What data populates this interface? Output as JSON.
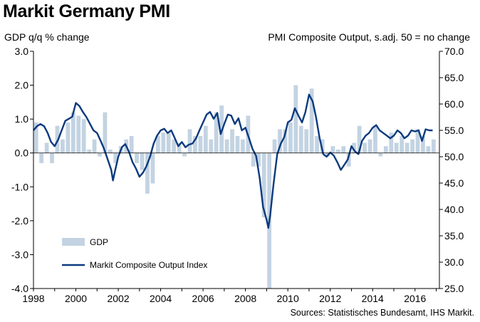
{
  "title": "Markit Germany PMI",
  "left_axis_caption": "GDP q/q % change",
  "right_axis_caption": "PMI Composite  Output, s.adj. 50 = no change",
  "source": "Sources: Statistisches Bundesamt, IHS Markit.",
  "colors": {
    "gdp_bar": "#c3d3e2",
    "pmi_line": "#0b3a7e",
    "axis": "#000000"
  },
  "chart_data": {
    "type": "bar+line",
    "title": "Markit Germany PMI",
    "x_ticks": [
      "1998",
      "2000",
      "2002",
      "2004",
      "2006",
      "2008",
      "2010",
      "2012",
      "2014",
      "2016"
    ],
    "left_axis": {
      "label": "GDP q/q % change",
      "ylim": [
        -4.0,
        3.0
      ],
      "ticks": [
        "3.0",
        "2.0",
        "1.0",
        "0.0",
        "-1.0",
        "-2.0",
        "-3.0",
        "-4.0"
      ]
    },
    "right_axis": {
      "label": "PMI Composite  Output, s.adj. 50 = no change",
      "ylim": [
        25.0,
        70.0
      ],
      "ticks": [
        "70.0",
        "65.0",
        "60.0",
        "55.0",
        "50.0",
        "45.0",
        "40.0",
        "35.0",
        "30.0",
        "25.0"
      ]
    },
    "legend": [
      "GDP",
      "Markit Composite Output Index"
    ],
    "grid": false,
    "series": [
      {
        "name": "GDP",
        "type": "bar",
        "axis": "left",
        "x": [
          1998.0,
          1998.25,
          1998.5,
          1998.75,
          1999.0,
          1999.25,
          1999.5,
          1999.75,
          2000.0,
          2000.25,
          2000.5,
          2000.75,
          2001.0,
          2001.25,
          2001.5,
          2001.75,
          2002.0,
          2002.25,
          2002.5,
          2002.75,
          2003.0,
          2003.25,
          2003.5,
          2003.75,
          2004.0,
          2004.25,
          2004.5,
          2004.75,
          2005.0,
          2005.25,
          2005.5,
          2005.75,
          2006.0,
          2006.25,
          2006.5,
          2006.75,
          2007.0,
          2007.25,
          2007.5,
          2007.75,
          2008.0,
          2008.25,
          2008.5,
          2008.75,
          2009.0,
          2009.25,
          2009.5,
          2009.75,
          2010.0,
          2010.25,
          2010.5,
          2010.75,
          2011.0,
          2011.25,
          2011.5,
          2011.75,
          2012.0,
          2012.25,
          2012.5,
          2012.75,
          2013.0,
          2013.25,
          2013.5,
          2013.75,
          2014.0,
          2014.25,
          2014.5,
          2014.75,
          2015.0,
          2015.25,
          2015.5,
          2015.75,
          2016.0,
          2016.25,
          2016.5,
          2016.75
        ],
        "values": [
          0.9,
          -0.3,
          0.3,
          -0.3,
          0.8,
          0.4,
          0.9,
          1.2,
          1.1,
          1.0,
          0.1,
          0.4,
          -0.1,
          1.2,
          0.1,
          -0.3,
          0.2,
          0.4,
          0.5,
          -0.3,
          -0.5,
          -1.2,
          -0.9,
          0.5,
          0.6,
          0.6,
          0.4,
          0.3,
          -0.1,
          0.7,
          0.5,
          0.5,
          0.8,
          0.4,
          1.2,
          1.4,
          0.4,
          0.7,
          0.5,
          0.4,
          1.1,
          -0.4,
          -0.4,
          -1.9,
          -4.0,
          0.4,
          0.7,
          0.7,
          0.9,
          2.0,
          0.8,
          0.7,
          1.9,
          0.5,
          0.4,
          -0.1,
          0.2,
          0.1,
          0.2,
          -0.4,
          0.3,
          0.8,
          0.3,
          0.4,
          0.8,
          -0.1,
          0.2,
          0.6,
          0.3,
          0.5,
          0.3,
          0.4,
          0.7,
          0.5,
          0.2,
          0.4
        ]
      },
      {
        "name": "Markit Composite Output Index",
        "type": "line",
        "axis": "right",
        "x": [
          1998.0,
          1998.17,
          1998.33,
          1998.5,
          1998.67,
          1998.83,
          1999.0,
          1999.17,
          1999.33,
          1999.5,
          1999.67,
          1999.83,
          2000.0,
          2000.17,
          2000.33,
          2000.5,
          2000.67,
          2000.83,
          2001.0,
          2001.17,
          2001.33,
          2001.5,
          2001.67,
          2001.75,
          2001.83,
          2002.0,
          2002.17,
          2002.33,
          2002.5,
          2002.67,
          2002.83,
          2003.0,
          2003.17,
          2003.33,
          2003.5,
          2003.67,
          2003.83,
          2004.0,
          2004.17,
          2004.33,
          2004.5,
          2004.67,
          2004.83,
          2005.0,
          2005.17,
          2005.33,
          2005.5,
          2005.67,
          2005.83,
          2006.0,
          2006.17,
          2006.33,
          2006.5,
          2006.67,
          2006.83,
          2007.0,
          2007.17,
          2007.33,
          2007.5,
          2007.67,
          2007.83,
          2008.0,
          2008.17,
          2008.33,
          2008.5,
          2008.67,
          2008.83,
          2009.0,
          2009.08,
          2009.17,
          2009.33,
          2009.5,
          2009.67,
          2009.83,
          2010.0,
          2010.17,
          2010.33,
          2010.5,
          2010.67,
          2010.83,
          2011.0,
          2011.17,
          2011.33,
          2011.5,
          2011.67,
          2011.83,
          2012.0,
          2012.17,
          2012.33,
          2012.5,
          2012.67,
          2012.83,
          2013.0,
          2013.17,
          2013.33,
          2013.5,
          2013.67,
          2013.83,
          2014.0,
          2014.17,
          2014.33,
          2014.5,
          2014.67,
          2014.83,
          2015.0,
          2015.17,
          2015.33,
          2015.5,
          2015.67,
          2015.83,
          2016.0,
          2016.17,
          2016.33,
          2016.5,
          2016.67,
          2016.83
        ],
        "values": [
          55.0,
          55.8,
          56.2,
          55.8,
          54.5,
          52.8,
          52.0,
          53.3,
          55.0,
          56.8,
          57.2,
          57.6,
          60.2,
          59.6,
          58.5,
          57.5,
          56.2,
          55.0,
          54.5,
          53.0,
          51.5,
          49.5,
          47.5,
          45.5,
          47.0,
          50.0,
          51.8,
          52.4,
          51.0,
          49.0,
          47.8,
          46.2,
          47.0,
          48.2,
          50.0,
          52.5,
          54.0,
          55.0,
          55.3,
          54.5,
          55.0,
          53.5,
          52.0,
          52.8,
          51.8,
          52.3,
          52.5,
          53.5,
          55.0,
          56.5,
          58.0,
          58.5,
          57.2,
          58.3,
          54.3,
          56.2,
          58.0,
          57.8,
          56.2,
          57.3,
          55.0,
          55.5,
          53.5,
          51.5,
          50.2,
          46.0,
          40.5,
          38.0,
          36.5,
          39.0,
          45.0,
          50.5,
          52.5,
          53.7,
          56.5,
          57.0,
          59.2,
          57.8,
          56.5,
          58.5,
          61.8,
          60.5,
          57.5,
          53.5,
          50.5,
          50.0,
          50.8,
          50.2,
          49.0,
          47.5,
          48.5,
          49.5,
          52.0,
          51.0,
          50.5,
          53.0,
          54.0,
          54.5,
          55.5,
          56.0,
          55.0,
          54.5,
          54.0,
          53.5,
          54.0,
          55.0,
          54.5,
          53.5,
          54.0,
          55.0,
          54.8,
          55.0,
          53.0,
          55.2,
          55.0,
          55.0
        ]
      }
    ]
  }
}
